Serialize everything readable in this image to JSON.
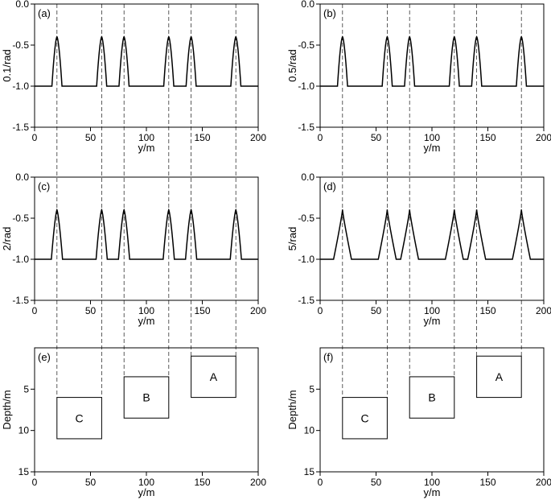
{
  "chart_data": [
    {
      "id": "a",
      "type": "line",
      "panel_label": "(a)",
      "xlabel": "y/m",
      "ylabel": "0.1/rad",
      "xlim": [
        0,
        200
      ],
      "ylim": [
        -1.5,
        0
      ],
      "xticks": [
        0,
        50,
        100,
        150,
        200
      ],
      "yticks": [
        0.0,
        -0.5,
        -1.0,
        -1.5
      ],
      "ytick_labels": [
        "0.0",
        "-0.5",
        "-1.0",
        "-1.5"
      ],
      "baseline": -1.0,
      "peak_value": -0.4,
      "peaks_x": [
        20,
        60,
        80,
        120,
        140,
        180
      ],
      "peak_half_width": 4.5,
      "peak_shape": 1.6
    },
    {
      "id": "b",
      "type": "line",
      "panel_label": "(b)",
      "xlabel": "y/m",
      "ylabel": "0.5/rad",
      "xlim": [
        0,
        200
      ],
      "ylim": [
        -1.5,
        0
      ],
      "xticks": [
        0,
        50,
        100,
        150,
        200
      ],
      "yticks": [
        0.0,
        -0.5,
        -1.0,
        -1.5
      ],
      "ytick_labels": [
        "0.0",
        "-0.5",
        "-1.0",
        "-1.5"
      ],
      "baseline": -1.0,
      "peak_value": -0.4,
      "peaks_x": [
        20,
        60,
        80,
        120,
        140,
        180
      ],
      "peak_half_width": 4.5,
      "peak_shape": 1.6
    },
    {
      "id": "c",
      "type": "line",
      "panel_label": "(c)",
      "xlabel": "y/m",
      "ylabel": "2/rad",
      "xlim": [
        0,
        200
      ],
      "ylim": [
        -1.5,
        0
      ],
      "xticks": [
        0,
        50,
        100,
        150,
        200
      ],
      "yticks": [
        0.0,
        -0.5,
        -1.0,
        -1.5
      ],
      "ytick_labels": [
        "0.0",
        "-0.5",
        "-1.0",
        "-1.5"
      ],
      "baseline": -1.0,
      "peak_value": -0.4,
      "peaks_x": [
        20,
        60,
        80,
        120,
        140,
        180
      ],
      "peak_half_width": 5.0,
      "peak_shape": 1.4
    },
    {
      "id": "d",
      "type": "line",
      "panel_label": "(d)",
      "xlabel": "y/m",
      "ylabel": "5/rad",
      "xlim": [
        0,
        200
      ],
      "ylim": [
        -1.5,
        0
      ],
      "xticks": [
        0,
        50,
        100,
        150,
        200
      ],
      "yticks": [
        0.0,
        -0.5,
        -1.0,
        -1.5
      ],
      "ytick_labels": [
        "0.0",
        "-0.5",
        "-1.0",
        "-1.5"
      ],
      "baseline": -1.0,
      "peak_value": -0.4,
      "peaks_x": [
        20,
        60,
        80,
        120,
        140,
        180
      ],
      "peak_half_width": 8.0,
      "peak_shape": 0.9
    },
    {
      "id": "e",
      "type": "diagram",
      "panel_label": "(e)",
      "xlabel": "y/m",
      "ylabel": "Depth/m",
      "xlim": [
        0,
        200
      ],
      "ylim": [
        0,
        15
      ],
      "xticks": [
        0,
        50,
        100,
        150,
        200
      ],
      "yticks": [
        5,
        10,
        15
      ],
      "ytick_labels": [
        "5",
        "10",
        "15"
      ],
      "boxes": [
        {
          "label": "A",
          "x": [
            140,
            180
          ],
          "depth": [
            1,
            6
          ]
        },
        {
          "label": "B",
          "x": [
            80,
            120
          ],
          "depth": [
            3.5,
            8.5
          ]
        },
        {
          "label": "C",
          "x": [
            20,
            60
          ],
          "depth": [
            6,
            11
          ]
        }
      ]
    },
    {
      "id": "f",
      "type": "diagram",
      "panel_label": "(f)",
      "xlabel": "y/m",
      "ylabel": "Depth/m",
      "xlim": [
        0,
        200
      ],
      "ylim": [
        0,
        15
      ],
      "xticks": [
        0,
        50,
        100,
        150,
        200
      ],
      "yticks": [
        5,
        10,
        15
      ],
      "ytick_labels": [
        "5",
        "10",
        "15"
      ],
      "boxes": [
        {
          "label": "A",
          "x": [
            140,
            180
          ],
          "depth": [
            1,
            6
          ]
        },
        {
          "label": "B",
          "x": [
            80,
            120
          ],
          "depth": [
            3.5,
            8.5
          ]
        },
        {
          "label": "C",
          "x": [
            20,
            60
          ],
          "depth": [
            6,
            11
          ]
        }
      ]
    }
  ],
  "guide_lines_x": [
    20,
    60,
    80,
    120,
    140,
    180
  ]
}
